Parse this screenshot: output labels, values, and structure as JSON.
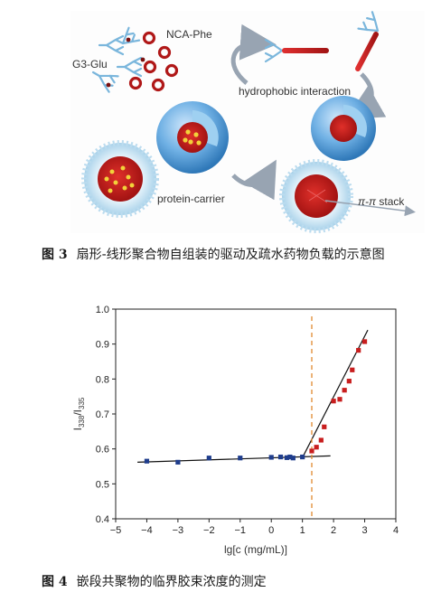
{
  "figure3": {
    "labels": {
      "ncaphe": "NCA-Phe",
      "g3glu": "G3-Glu",
      "hydrophobic": "hydrophobic interaction",
      "protein": "protein-carrier",
      "stack_pi": "π-π",
      "stack_word": " stack"
    },
    "colors": {
      "sphere": "#5fa8de",
      "core": "#c81e1e",
      "dendron": "#7ab6dc",
      "arrow": "#98a4b2"
    }
  },
  "caption3": {
    "label": "图 3",
    "text": "扇形-线形聚合物自组装的驱动及疏水药物负载的示意图"
  },
  "chart_data": {
    "type": "scatter",
    "xlabel": "lg[c (mg/mL)]",
    "ylabel_main": "I",
    "ylabel_sub1": "338",
    "ylabel_sep": "/I",
    "ylabel_sub2": "335",
    "xlim": [
      -5,
      4
    ],
    "ylim": [
      0.4,
      1.0
    ],
    "xticks": [
      "−5",
      "−4",
      "−3",
      "−2",
      "−1",
      "0",
      "1",
      "2",
      "3",
      "4"
    ],
    "yticks": [
      "0.4",
      "0.5",
      "0.6",
      "0.7",
      "0.8",
      "0.9",
      "1.0"
    ],
    "series": [
      {
        "marker": "square",
        "color": "#1f3d8c",
        "x": [
          -4.0,
          -3.0,
          -2.0,
          -1.0,
          0.0,
          0.3,
          0.5,
          0.6,
          0.7,
          1.0
        ],
        "y": [
          0.565,
          0.562,
          0.574,
          0.574,
          0.576,
          0.577,
          0.575,
          0.577,
          0.574,
          0.577
        ]
      },
      {
        "marker": "square",
        "color": "#c81e1e",
        "x": [
          1.3,
          1.45,
          1.6,
          1.7,
          2.0,
          2.2,
          2.35,
          2.5,
          2.6,
          2.8,
          3.0
        ],
        "y": [
          0.594,
          0.605,
          0.625,
          0.663,
          0.737,
          0.742,
          0.768,
          0.794,
          0.826,
          0.882,
          0.907
        ]
      }
    ],
    "fit_lines": [
      {
        "x": [
          -4.3,
          1.9
        ],
        "y": [
          0.562,
          0.58
        ]
      },
      {
        "x": [
          1.0,
          3.1
        ],
        "y": [
          0.575,
          0.94
        ]
      }
    ],
    "cmc_line": {
      "x": 1.3,
      "color": "#e0892e"
    }
  },
  "caption4": {
    "label": "图 4",
    "text": "嵌段共聚物的临界胶束浓度的测定"
  }
}
